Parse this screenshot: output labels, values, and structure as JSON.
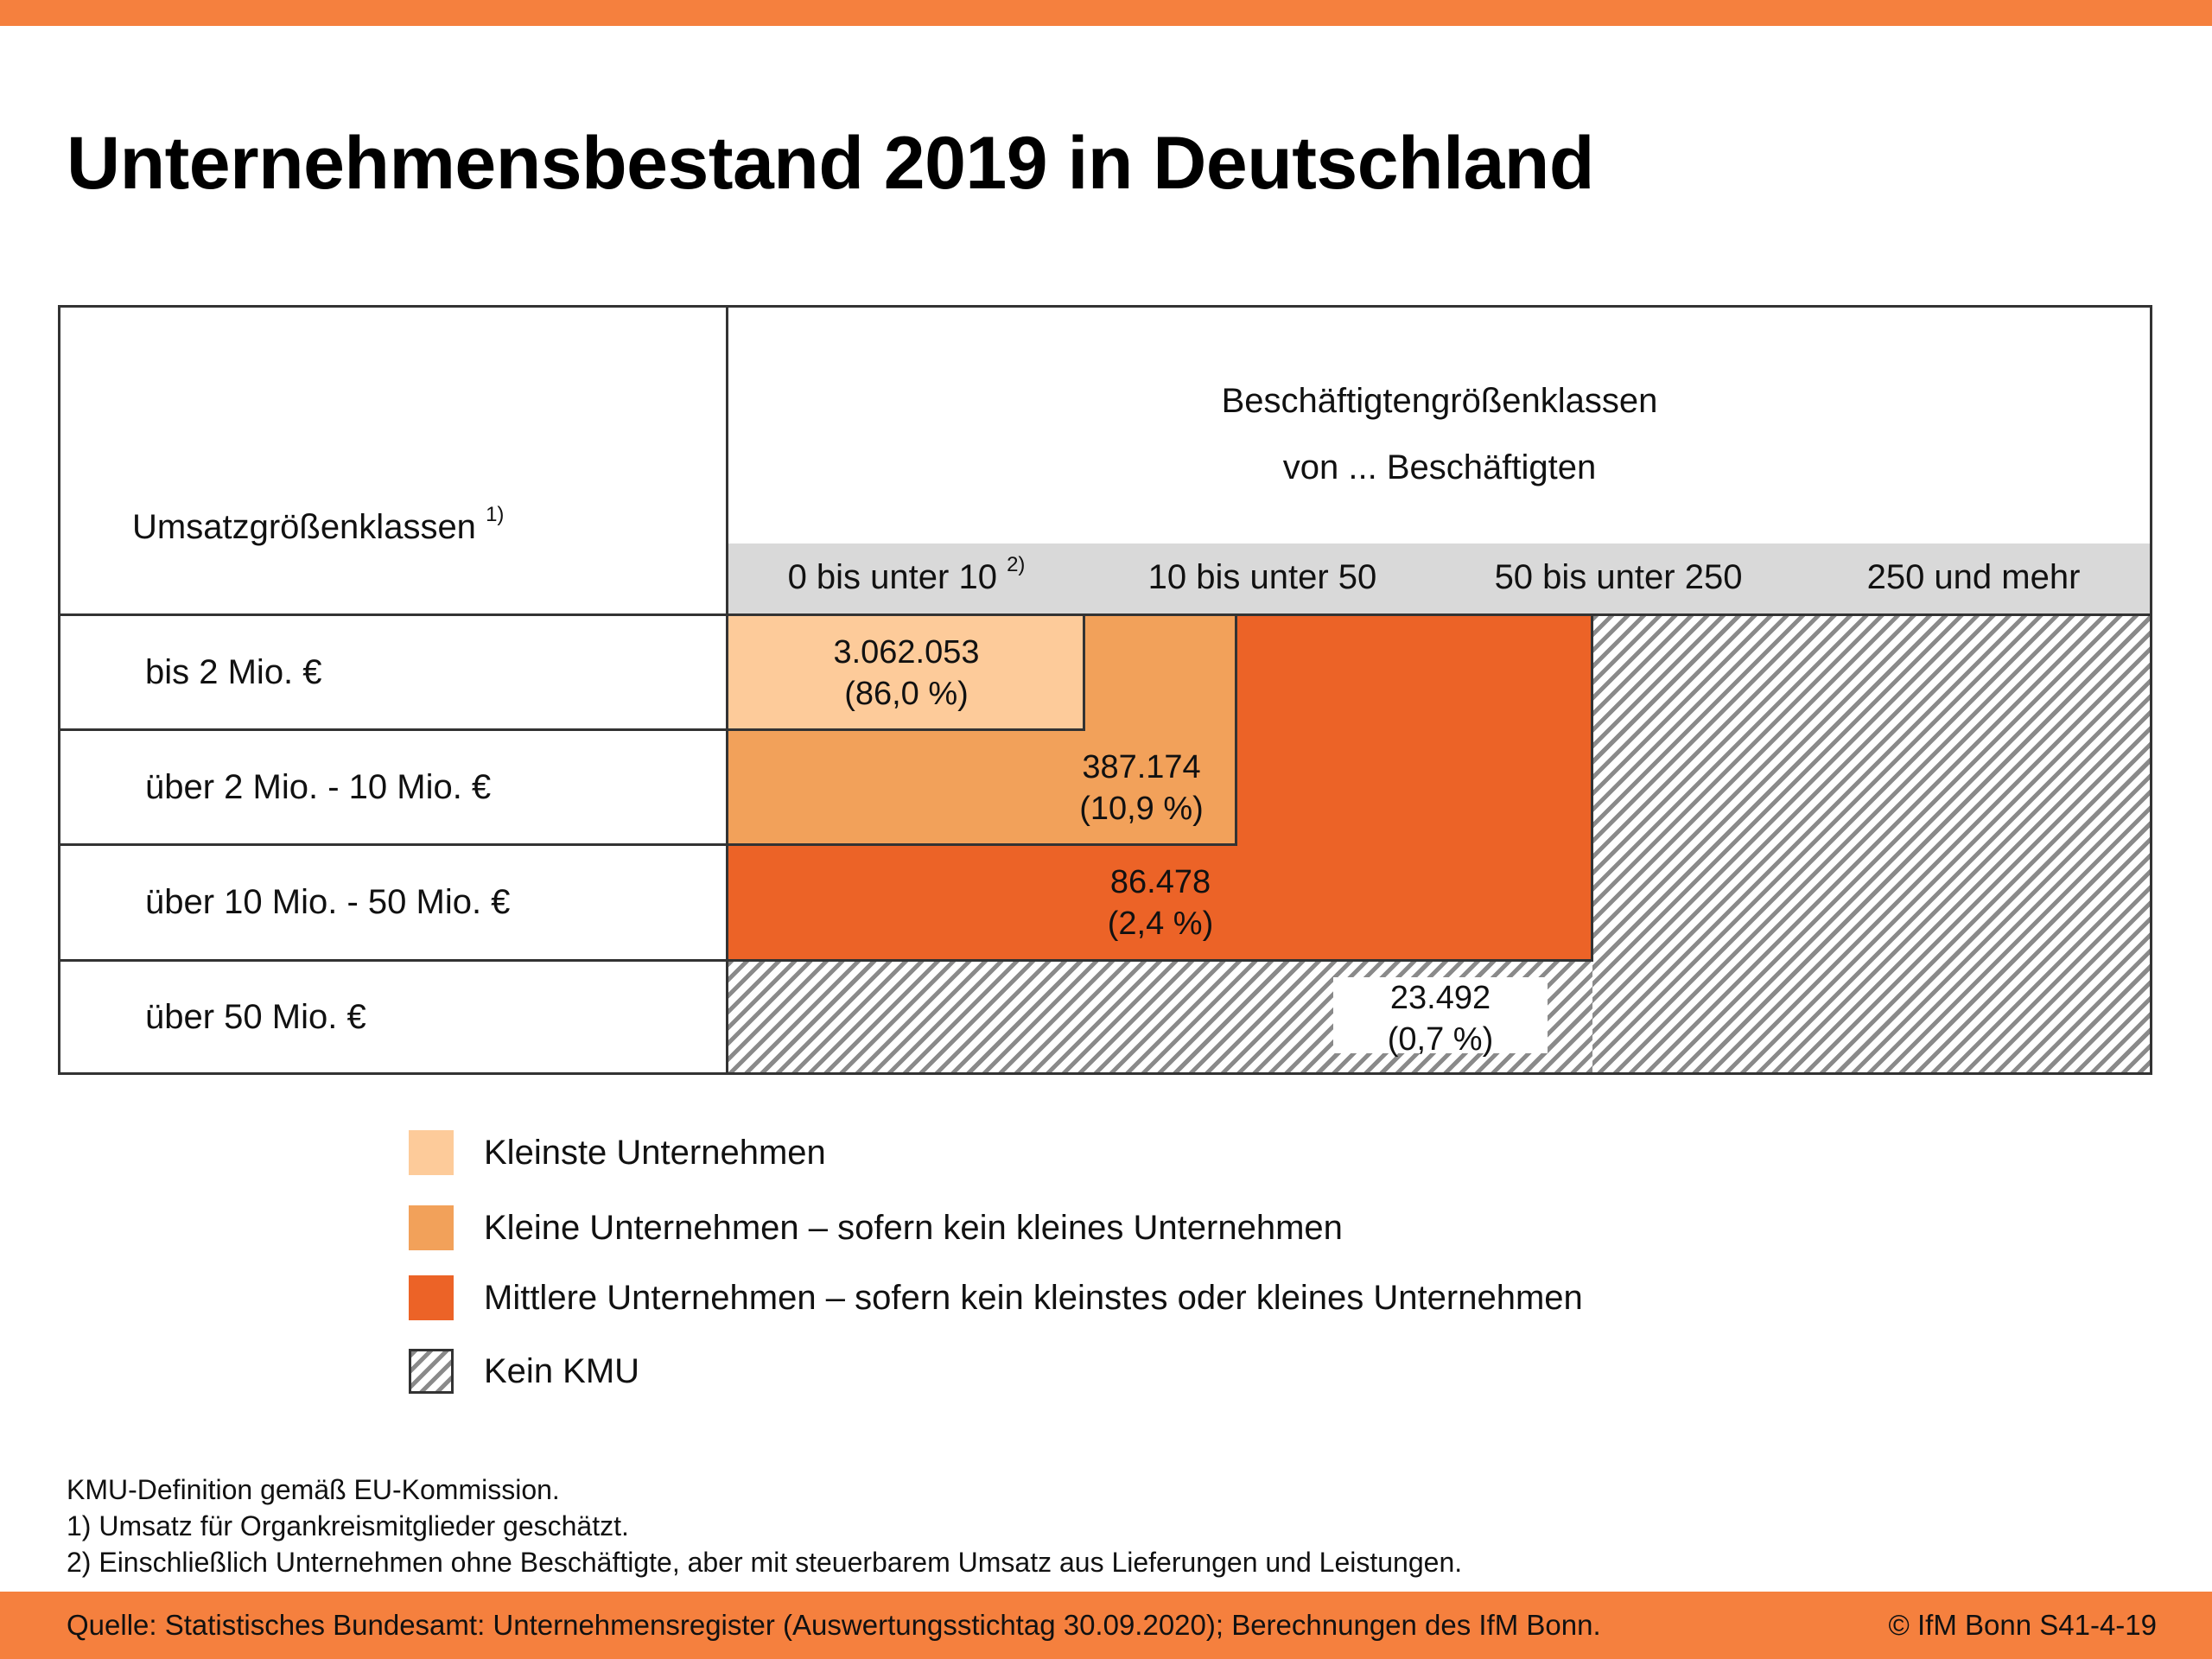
{
  "title": "Unternehmensbestand 2019 in Deutschland",
  "table": {
    "row_header": "Umsatzgrößenklassen",
    "row_header_note": "1)",
    "col_header_line1": "Beschäftigtengrößenklassen",
    "col_header_line2": "von ... Beschäftigten",
    "columns": [
      {
        "label": "0 bis unter 10",
        "note": "2)"
      },
      {
        "label": "10 bis unter 50",
        "note": ""
      },
      {
        "label": "50 bis unter 250",
        "note": ""
      },
      {
        "label": "250 und mehr",
        "note": ""
      }
    ],
    "rows": [
      "bis 2 Mio. €",
      "über 2 Mio. - 10 Mio. €",
      "über 10 Mio. - 50 Mio. €",
      "über 50 Mio. €"
    ]
  },
  "categories": [
    {
      "name": "Kleinste Unternehmen",
      "count": "3.062.053",
      "share": "(86,0 %)",
      "color": "#fdcb9a"
    },
    {
      "name": "Kleine Unternehmen – sofern kein kleines Unternehmen",
      "count": "387.174",
      "share": "(10,9 %)",
      "color": "#f2a15a"
    },
    {
      "name": "Mittlere Unternehmen – sofern kein kleinstes oder kleines Unternehmen",
      "count": "86.478",
      "share": "(2,4 %)",
      "color": "#ec6327"
    },
    {
      "name": "Kein KMU",
      "count": "23.492",
      "share": "(0,7 %)",
      "color": "hatched-gray"
    }
  ],
  "notes": [
    "KMU-Definition gemäß EU-Kommission.",
    "1) Umsatz für Organkreismitglieder geschätzt.",
    "2) Einschließlich Unternehmen ohne Beschäftigte, aber mit steuerbarem Umsatz aus Lieferungen und Leistungen."
  ],
  "footer": {
    "source": "Quelle: Statistisches Bundesamt: Unternehmensregister (Auswertungsstichtag 30.09.2020); Berechnungen des IfM Bonn.",
    "copyright": "© IfM Bonn  S41-4-19"
  }
}
